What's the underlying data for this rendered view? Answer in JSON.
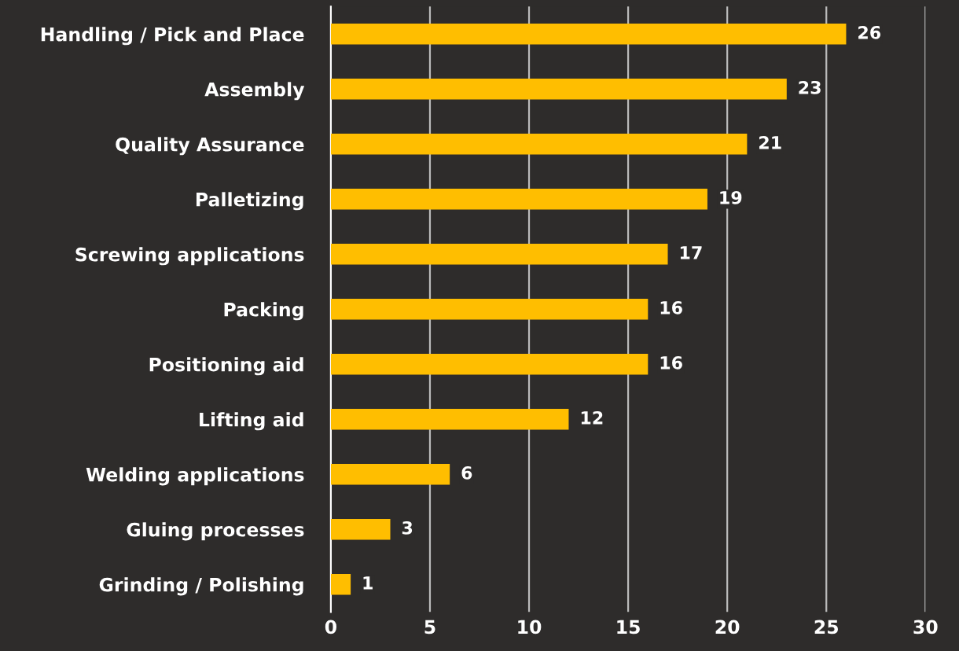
{
  "chart_data": {
    "type": "bar",
    "orientation": "horizontal",
    "categories": [
      "Handling / Pick and Place",
      "Assembly",
      "Quality Assurance",
      "Palletizing",
      "Screwing applications",
      "Packing",
      "Positioning aid",
      "Lifting aid",
      "Welding applications",
      "Gluing processes",
      "Grinding / Polishing"
    ],
    "values": [
      26,
      23,
      21,
      19,
      17,
      16,
      16,
      12,
      6,
      3,
      1
    ],
    "color": "#ffbe00",
    "xlim": [
      0,
      30
    ],
    "xticks": [
      0,
      5,
      10,
      15,
      20,
      25,
      30
    ],
    "grid": "x",
    "data_labels": true
  }
}
